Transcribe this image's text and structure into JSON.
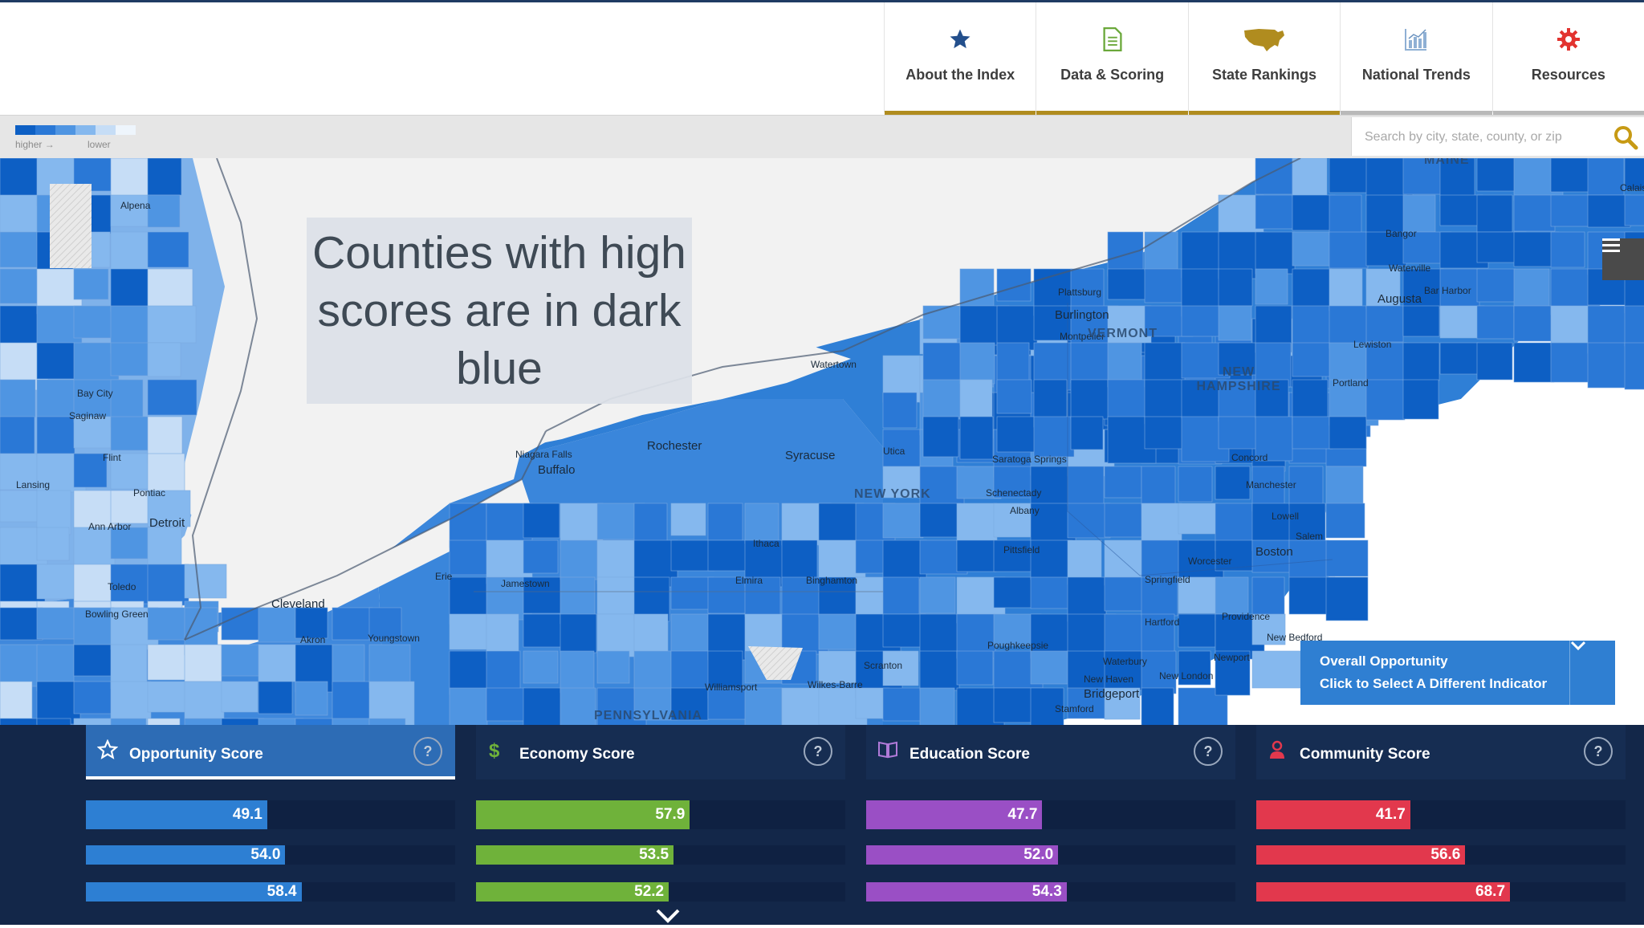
{
  "nav": [
    {
      "label": "About the Index",
      "icon": "star-icon"
    },
    {
      "label": "Data & Scoring",
      "icon": "document-icon"
    },
    {
      "label": "State Rankings",
      "icon": "usa-map-icon"
    },
    {
      "label": "National Trends",
      "icon": "bar-chart-icon"
    },
    {
      "label": "Resources",
      "icon": "gear-icon"
    }
  ],
  "legend": {
    "higher": "higher →",
    "lower": "lower",
    "colors": [
      "#0d5fc4",
      "#2a78d6",
      "#4f95e2",
      "#85b8ee",
      "#c6ddf6",
      "#eef5fc"
    ]
  },
  "search": {
    "placeholder": "Search by city, state, county, or zip"
  },
  "callout": {
    "text": "Counties with high scores are in dark blue"
  },
  "indicator": {
    "line1": "Overall Opportunity",
    "line2": "Click to Select A Different Indicator"
  },
  "map_labels": {
    "places": [
      {
        "text": "Alpena"
      },
      {
        "text": "Bay City"
      },
      {
        "text": "Saginaw"
      },
      {
        "text": "Flint"
      },
      {
        "text": "Lansing"
      },
      {
        "text": "Pontiac"
      },
      {
        "text": "Ann Arbor"
      },
      {
        "text": "Detroit"
      },
      {
        "text": "Toledo"
      },
      {
        "text": "Bowling Green"
      },
      {
        "text": "Cleveland"
      },
      {
        "text": "Akron"
      },
      {
        "text": "Youngstown"
      },
      {
        "text": "Erie"
      },
      {
        "text": "Jamestown"
      },
      {
        "text": "Buffalo"
      },
      {
        "text": "Niagara Falls"
      },
      {
        "text": "Rochester"
      },
      {
        "text": "Syracuse"
      },
      {
        "text": "Utica"
      },
      {
        "text": "Watertown"
      },
      {
        "text": "Ithaca"
      },
      {
        "text": "Elmira"
      },
      {
        "text": "Binghamton"
      },
      {
        "text": "Scranton"
      },
      {
        "text": "Wilkes-Barre"
      },
      {
        "text": "Williamsport"
      },
      {
        "text": "Plattsburg"
      },
      {
        "text": "Burlington"
      },
      {
        "text": "Montpelier"
      },
      {
        "text": "Saratoga Springs"
      },
      {
        "text": "Schenectady"
      },
      {
        "text": "Albany"
      },
      {
        "text": "Pittsfield"
      },
      {
        "text": "Springfield"
      },
      {
        "text": "Hartford"
      },
      {
        "text": "Poughkeepsie"
      },
      {
        "text": "Waterbury"
      },
      {
        "text": "New Haven"
      },
      {
        "text": "New London"
      },
      {
        "text": "Bridgeport"
      },
      {
        "text": "Stamford"
      },
      {
        "text": "Providence"
      },
      {
        "text": "Newport"
      },
      {
        "text": "New Bedford"
      },
      {
        "text": "Worcester"
      },
      {
        "text": "Boston"
      },
      {
        "text": "Salem"
      },
      {
        "text": "Lowell"
      },
      {
        "text": "Manchester"
      },
      {
        "text": "Concord"
      },
      {
        "text": "Portland"
      },
      {
        "text": "Lewiston"
      },
      {
        "text": "Augusta"
      },
      {
        "text": "Waterville"
      },
      {
        "text": "Bangor"
      },
      {
        "text": "Bar Harbor"
      },
      {
        "text": "Calais"
      }
    ],
    "regions": [
      "VERMONT",
      "NEW HAMPSHIRE",
      "NEW YORK",
      "PENNSYLVANIA",
      "MAINE"
    ]
  },
  "scores": [
    {
      "title": "Opportunity Score",
      "icon": "star-outline-icon",
      "color": "#2d7fd3",
      "active": true,
      "values": [
        49.1,
        54.0,
        58.4
      ]
    },
    {
      "title": "Economy Score",
      "icon": "dollar-icon",
      "color": "#6fb23a",
      "active": false,
      "values": [
        57.9,
        53.5,
        52.2
      ]
    },
    {
      "title": "Education Score",
      "icon": "book-icon",
      "color": "#9a4fc5",
      "active": false,
      "values": [
        47.7,
        52.0,
        54.3
      ]
    },
    {
      "title": "Community Score",
      "icon": "person-icon",
      "color": "#e2384d",
      "active": false,
      "values": [
        41.7,
        56.6,
        68.7
      ]
    }
  ],
  "help_label": "?"
}
